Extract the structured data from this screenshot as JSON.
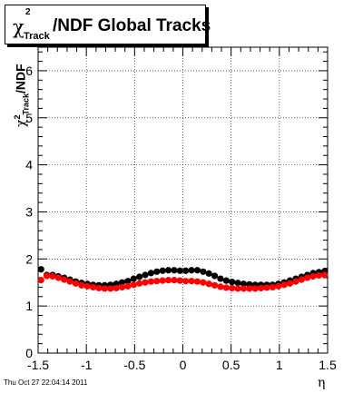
{
  "title": {
    "chi": "χ",
    "sup": "2",
    "sub": "Track",
    "rest": "/NDF  Global Tracks"
  },
  "ylabel": {
    "chi": "χ",
    "sup": "2",
    "sub": "Track",
    "rest": "/NDF"
  },
  "xlabel": "η",
  "footer": "Thu Oct 27 22:04:14 2011",
  "colors": {
    "series_black": "#000000",
    "series_red": "#ff0000",
    "grid": "#000000"
  },
  "chart_data": {
    "type": "scatter",
    "grid": true,
    "xlim": [
      -1.5,
      1.5
    ],
    "ylim": [
      0,
      6.5
    ],
    "xticks": [
      "-1.5",
      "-1",
      "-0.5",
      "0",
      "0.5",
      "1",
      "1.5"
    ],
    "yticks": [
      "0",
      "1",
      "2",
      "3",
      "4",
      "5",
      "6"
    ],
    "series": [
      {
        "color": "#000000",
        "x": [
          -1.47,
          -1.41,
          -1.35,
          -1.29,
          -1.23,
          -1.17,
          -1.11,
          -1.05,
          -0.99,
          -0.93,
          -0.87,
          -0.81,
          -0.75,
          -0.69,
          -0.63,
          -0.57,
          -0.51,
          -0.45,
          -0.39,
          -0.33,
          -0.27,
          -0.21,
          -0.15,
          -0.09,
          -0.03,
          0.03,
          0.09,
          0.15,
          0.21,
          0.27,
          0.33,
          0.39,
          0.45,
          0.51,
          0.57,
          0.63,
          0.69,
          0.75,
          0.81,
          0.87,
          0.93,
          0.99,
          1.05,
          1.11,
          1.17,
          1.23,
          1.29,
          1.35,
          1.41,
          1.47
        ],
        "y": [
          1.78,
          1.66,
          1.66,
          1.63,
          1.6,
          1.56,
          1.52,
          1.49,
          1.47,
          1.45,
          1.44,
          1.44,
          1.45,
          1.47,
          1.5,
          1.53,
          1.58,
          1.62,
          1.66,
          1.7,
          1.73,
          1.75,
          1.76,
          1.76,
          1.75,
          1.75,
          1.76,
          1.76,
          1.73,
          1.69,
          1.64,
          1.58,
          1.54,
          1.51,
          1.49,
          1.47,
          1.46,
          1.45,
          1.45,
          1.45,
          1.45,
          1.47,
          1.5,
          1.54,
          1.58,
          1.62,
          1.66,
          1.7,
          1.72,
          1.74
        ]
      },
      {
        "color": "#ff0000",
        "x": [
          -1.47,
          -1.41,
          -1.35,
          -1.29,
          -1.23,
          -1.17,
          -1.11,
          -1.05,
          -0.99,
          -0.93,
          -0.87,
          -0.81,
          -0.75,
          -0.69,
          -0.63,
          -0.57,
          -0.51,
          -0.45,
          -0.39,
          -0.33,
          -0.27,
          -0.21,
          -0.15,
          -0.09,
          -0.03,
          0.03,
          0.09,
          0.15,
          0.21,
          0.27,
          0.33,
          0.39,
          0.45,
          0.51,
          0.57,
          0.63,
          0.69,
          0.75,
          0.81,
          0.87,
          0.93,
          0.99,
          1.05,
          1.11,
          1.17,
          1.23,
          1.29,
          1.35,
          1.41,
          1.47
        ],
        "y": [
          1.55,
          1.64,
          1.63,
          1.6,
          1.56,
          1.52,
          1.48,
          1.44,
          1.42,
          1.4,
          1.38,
          1.37,
          1.37,
          1.38,
          1.4,
          1.42,
          1.45,
          1.48,
          1.5,
          1.52,
          1.53,
          1.54,
          1.55,
          1.55,
          1.54,
          1.53,
          1.53,
          1.52,
          1.5,
          1.47,
          1.44,
          1.41,
          1.39,
          1.38,
          1.37,
          1.37,
          1.37,
          1.37,
          1.38,
          1.39,
          1.4,
          1.42,
          1.45,
          1.48,
          1.52,
          1.56,
          1.6,
          1.63,
          1.65,
          1.66
        ]
      }
    ]
  }
}
